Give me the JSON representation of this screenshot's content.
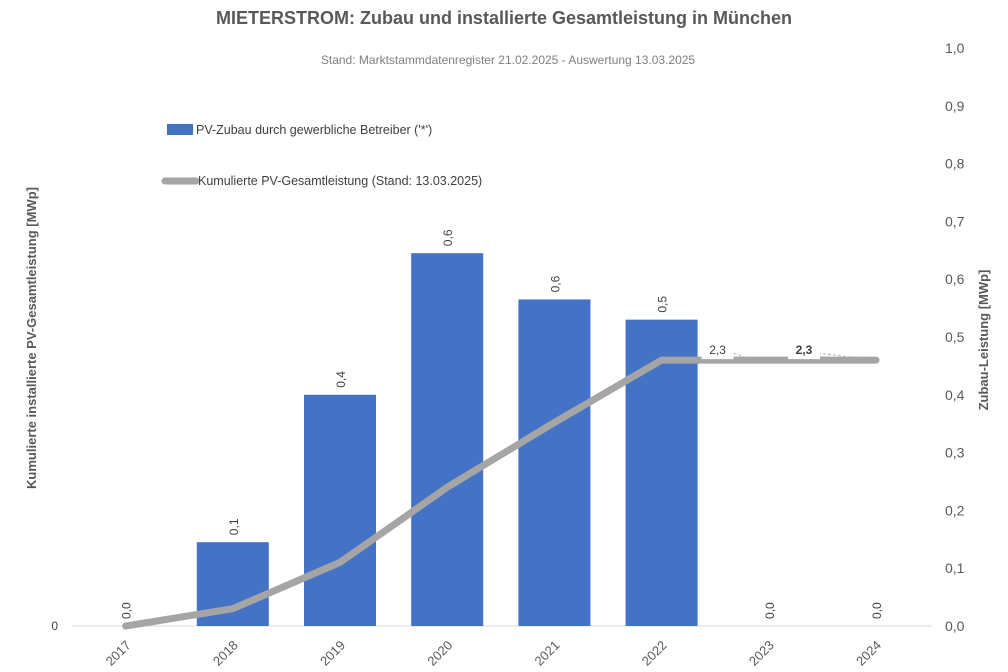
{
  "chart_data": {
    "type": "bar",
    "title": "MIETERSTROM: Zubau und installierte Gesamtleistung in München",
    "subtitle": "Stand: Marktstammdatenregister 21.02.2025 - Auswertung 13.03.2025",
    "categories": [
      "2017",
      "2018",
      "2019",
      "2020",
      "2021",
      "2022",
      "2023",
      "2024"
    ],
    "series": [
      {
        "name": "PV-Zubau durch gewerbliche Betreiber ('*')",
        "kind": "bar",
        "axis": "right",
        "color": "#4472C4",
        "values": [
          0.0,
          0.145,
          0.4,
          0.645,
          0.565,
          0.53,
          0.0,
          0.0
        ],
        "labels": [
          "0,0",
          "0,1",
          "0,4",
          "0,6",
          "0,6",
          "0,5",
          "0,0",
          "0,0"
        ]
      },
      {
        "name": "Kumulierte PV-Gesamtleistung (Stand: 13.03.2025)",
        "kind": "line",
        "axis": "left",
        "color": "#A5A5A5",
        "values": [
          0.0,
          0.15,
          0.55,
          1.2,
          1.76,
          2.3,
          2.3,
          2.3
        ],
        "labels": [
          "",
          "",
          "",
          "",
          "",
          "2,3",
          "",
          "2,3"
        ]
      }
    ],
    "ylabel_left": "Kumulierte installierte PV-Gesamtleistung [MWp]",
    "ylabel_right": "Zubau-Leistung [MWp]",
    "left_axis": {
      "ylim": [
        0,
        5.0
      ],
      "ticks": [
        "0"
      ]
    },
    "right_axis": {
      "ylim": [
        0,
        1.0
      ],
      "ticks": [
        "0,0",
        "0,1",
        "0,2",
        "0,3",
        "0,4",
        "0,5",
        "0,6",
        "0,7",
        "0,8",
        "0,9",
        "1,0"
      ]
    },
    "legend_position": "top-left",
    "grid": false
  }
}
